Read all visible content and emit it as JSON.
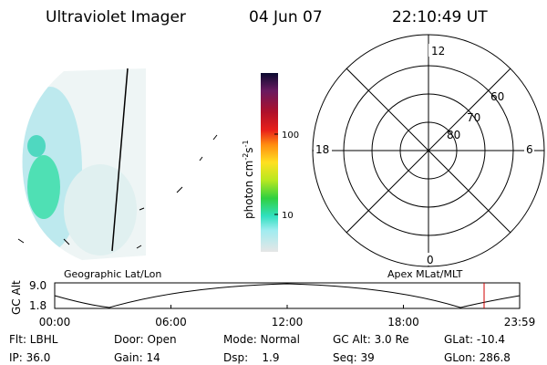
{
  "header": {
    "title": "Ultraviolet Imager",
    "date": "04 Jun 07",
    "time": "22:10:49 UT"
  },
  "colorbar": {
    "label": "photon cm",
    "exp1": "-2",
    "unit2": "s",
    "exp2": "-1",
    "ticks": [
      "100",
      "10"
    ]
  },
  "polar": {
    "mlt_labels": [
      "12",
      "18",
      "6",
      "0"
    ],
    "lat_labels": [
      "60",
      "70",
      "80"
    ]
  },
  "panel_labels": {
    "left": "Geographic Lat/Lon",
    "right": "Apex MLat/MLT"
  },
  "altitude_plot": {
    "ylabel": "GC Alt",
    "yticks": [
      "9.0",
      "1.8"
    ],
    "xticks": [
      "00:00",
      "06:00",
      "12:00",
      "18:00",
      "23:59"
    ]
  },
  "footer": {
    "rows": [
      [
        "Flt: LBHL",
        "Door: Open",
        "Mode: Normal",
        "GC Alt: 3.0 Re",
        "GLat: -10.4"
      ],
      [
        "IP: 36.0",
        "Gain: 14",
        "Dsp:    1.9",
        "Seq: 39",
        "GLon: 286.8"
      ]
    ]
  }
}
